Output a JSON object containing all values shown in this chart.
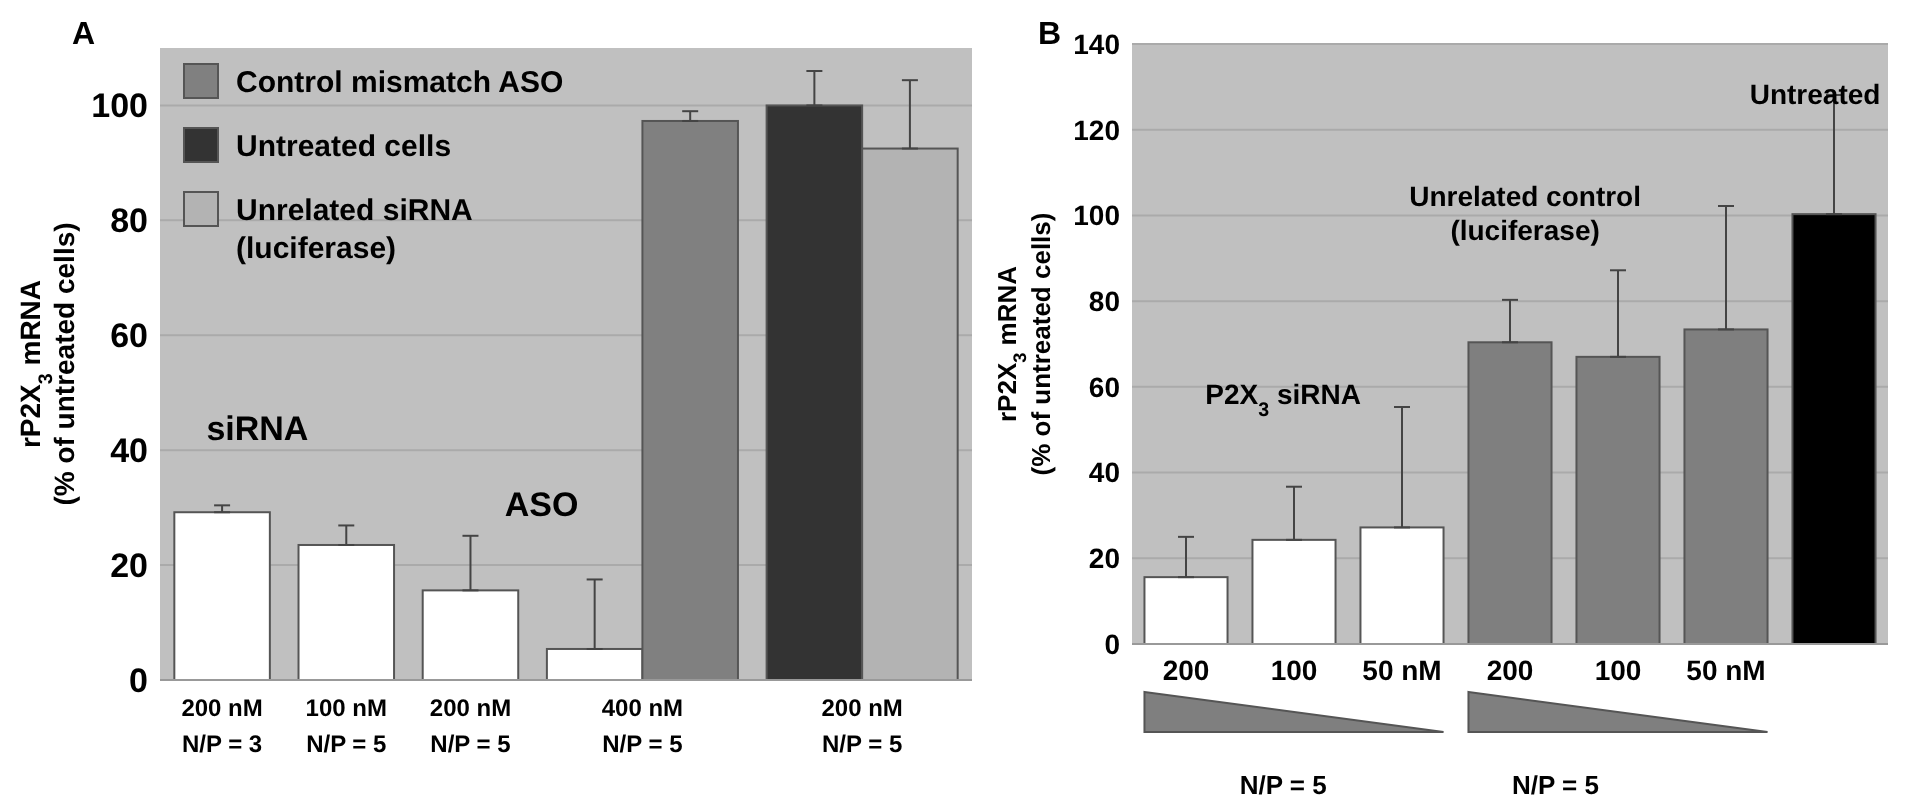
{
  "chart_data": [
    {
      "type": "bar",
      "title": "A",
      "ylabel": "rP2X$_{3}$ mRNA\n(% of untreated cells)",
      "categories": [
        "200 nM\nN/P = 3",
        "100 nM\nN/P = 5",
        "200 nM\nN/P = 5",
        "400 nM\nN/P = 5",
        "200 nM\nN/P = 5"
      ],
      "series": [
        {
          "color": "#ffffff",
          "values": [
            29.2,
            23.5,
            15.6,
            5.4,
            null
          ],
          "errors": [
            [
              29.2,
              30.4
            ],
            [
              23.5,
              26.9
            ],
            [
              15.6,
              25.1
            ],
            [
              5.4,
              17.5
            ],
            null
          ]
        },
        {
          "name": "Control mismatch ASO",
          "color": "#808080",
          "values": [
            null,
            null,
            null,
            97.3,
            null
          ],
          "errors": [
            null,
            null,
            null,
            [
              97.3,
              99
            ],
            null
          ]
        },
        {
          "name": "Untreated cells",
          "color": "#333333",
          "values": [
            null,
            null,
            null,
            null,
            100
          ],
          "errors": [
            null,
            null,
            null,
            null,
            [
              100,
              106
            ]
          ]
        },
        {
          "name": "Unrelated siRNA\n(luciferase)",
          "color": "#b3b3b3",
          "values": [
            null,
            null,
            null,
            null,
            92.5
          ],
          "errors": [
            null,
            null,
            null,
            null,
            [
              92.5,
              104.4
            ]
          ]
        }
      ],
      "ylim": [
        0,
        110
      ],
      "yticks": [
        0,
        20,
        40,
        60,
        80,
        100
      ],
      "grid": "y",
      "legend": "top left",
      "annotations": [
        "siRNA",
        "ASO"
      ]
    },
    {
      "type": "bar",
      "title": "B",
      "ylabel": "rP2X$_{3}$ mRNA\n(% of untreated cells)",
      "categories": [
        "200",
        "100",
        "50 nM",
        "200",
        "100",
        "50 nM",
        null
      ],
      "values": [
        15.6,
        24.3,
        27.2,
        70.4,
        67,
        73.4,
        100.3
      ],
      "colors": [
        "#ffffff",
        "#ffffff",
        "#ffffff",
        "#7f7f7f",
        "#7f7f7f",
        "#7f7f7f",
        "#000000"
      ],
      "errors": [
        [
          15.6,
          25
        ],
        [
          24.3,
          36.7
        ],
        [
          27.2,
          55.3
        ],
        [
          70.4,
          80.3
        ],
        [
          67,
          87.2
        ],
        [
          73.4,
          102.2
        ],
        [
          100.3,
          128.1
        ]
      ],
      "ylim": [
        0,
        140
      ],
      "yticks": [
        0,
        20,
        40,
        60,
        80,
        100,
        120,
        140
      ],
      "grid": "y",
      "annotations": [
        "P2X$_{3}$ siRNA",
        "Unrelated control\n(luciferase)",
        "Untreated",
        "N/P = 5",
        "N/P = 5"
      ]
    }
  ]
}
